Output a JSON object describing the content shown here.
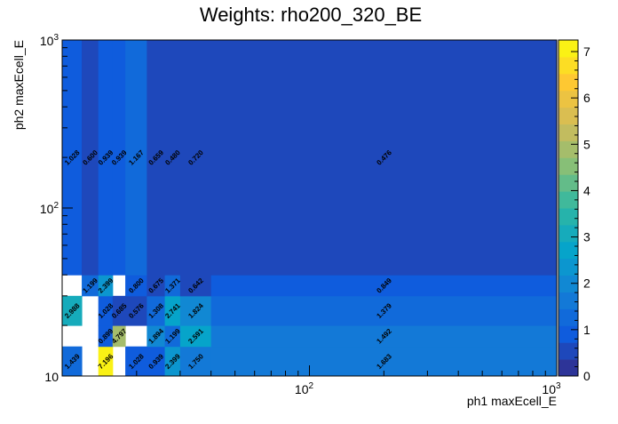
{
  "chart_data": {
    "type": "heatmap",
    "title": "Weights: rho200_320_BE",
    "xlabel": "ph1 maxEcell_E",
    "ylabel": "ph2 maxEcell_E",
    "x_scale": "log",
    "y_scale": "log",
    "xlim": [
      10,
      1000
    ],
    "ylim": [
      10,
      1000
    ],
    "zlim": [
      0,
      7.25
    ],
    "x_tick_labels": [
      "10",
      "10^2",
      "10^3"
    ],
    "y_tick_labels": [
      "10",
      "10^2",
      "10^3"
    ],
    "z_tick_labels": [
      "0",
      "1",
      "2",
      "3",
      "4",
      "5",
      "6",
      "7"
    ],
    "x_edges": [
      10,
      12,
      14,
      16,
      18,
      22,
      26,
      30,
      40,
      1000
    ],
    "y_edges": [
      10,
      15,
      20,
      30,
      40,
      1000
    ],
    "values": [
      [
        1.439,
        null,
        7.196,
        null,
        1.028,
        0.939,
        2.399,
        1.75,
        1.683
      ],
      [
        null,
        null,
        0.899,
        4.797,
        null,
        1.894,
        1.199,
        2.591,
        1.492
      ],
      [
        2.988,
        null,
        1.028,
        0.685,
        0.576,
        1.308,
        2.741,
        1.824,
        1.379
      ],
      [
        null,
        1.199,
        2.399,
        null,
        0.8,
        0.675,
        1.371,
        0.642,
        0.849
      ],
      [
        1.028,
        0.6,
        0.939,
        0.939,
        1.167,
        0.659,
        0.48,
        0.72,
        0.476
      ]
    ],
    "palette": "bird",
    "grid": false
  }
}
